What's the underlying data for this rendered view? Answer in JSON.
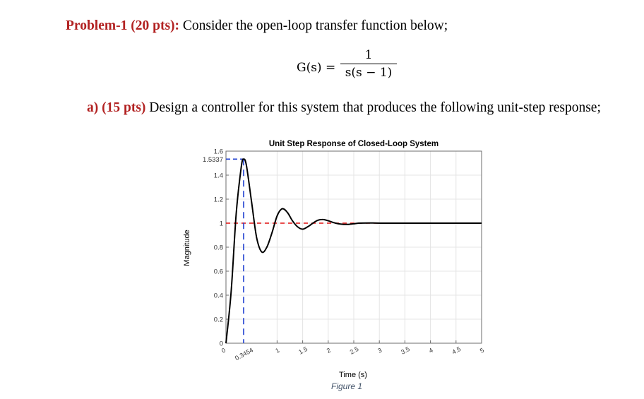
{
  "problem": {
    "label": "Problem-1 (20 pts):",
    "text": " Consider the open-loop transfer function below;"
  },
  "equation": {
    "lhs": "G(s) =",
    "numerator": "1",
    "denominator": "s(s − 1)"
  },
  "part_a": {
    "label": "a)",
    "points": "(15 pts)",
    "text": " Design a controller for this system that produces the following unit-step response;"
  },
  "figure": {
    "caption": "Figure 1"
  },
  "chart_data": {
    "type": "line",
    "title": "Unit Step Response of Closed-Loop System",
    "xlabel": "Time (s)",
    "ylabel": "Magnitude",
    "xlim": [
      0,
      5
    ],
    "ylim": [
      0,
      1.6
    ],
    "x_ticks": [
      "0",
      "0.3454",
      "1",
      "1.5",
      "2",
      "2.5",
      "3",
      "3.5",
      "4",
      "4.5",
      "5"
    ],
    "x_tick_values": [
      0,
      0.3454,
      1,
      1.5,
      2,
      2.5,
      3,
      3.5,
      4,
      4.5,
      5
    ],
    "y_ticks": [
      "0",
      "0.2",
      "0.4",
      "0.6",
      "0.8",
      "1",
      "1.2",
      "1.4",
      "1.5337",
      "1.6"
    ],
    "y_tick_values": [
      0,
      0.2,
      0.4,
      0.6,
      0.8,
      1,
      1.2,
      1.4,
      1.5337,
      1.6
    ],
    "grid": true,
    "peak": {
      "time": 0.3454,
      "value": 1.5337
    },
    "final_value": 1,
    "series": [
      {
        "x": [
          0,
          0.1,
          0.2,
          0.3,
          0.3454,
          0.4,
          0.5,
          0.6,
          0.7,
          0.8,
          0.9,
          1.0,
          1.1,
          1.2,
          1.3,
          1.4,
          1.5,
          1.6,
          1.7,
          1.8,
          1.9,
          2.0,
          2.1,
          2.2,
          2.3,
          2.4,
          2.5,
          2.6,
          2.8,
          3.0,
          3.5,
          4.0,
          4.5,
          5.0
        ],
        "y": [
          0,
          0.42,
          1.08,
          1.47,
          1.5337,
          1.48,
          1.18,
          0.88,
          0.76,
          0.8,
          0.92,
          1.06,
          1.12,
          1.09,
          1.02,
          0.97,
          0.95,
          0.97,
          1.0,
          1.025,
          1.03,
          1.02,
          1.005,
          0.995,
          0.99,
          0.99,
          0.995,
          1.0,
          1.002,
          1.0,
          1.0,
          1.0,
          1.0,
          1.0
        ]
      }
    ]
  }
}
